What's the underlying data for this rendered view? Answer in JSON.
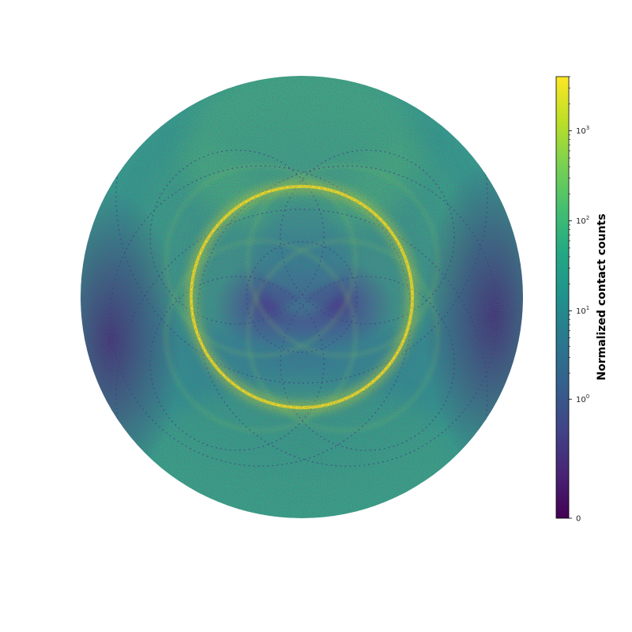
{
  "chart_data": {
    "type": "heatmap",
    "title": "",
    "xlabel": "",
    "ylabel": "",
    "scale": "symlog",
    "colormap": "viridis",
    "shape": "circular (polar)",
    "grid": false,
    "legend": "none",
    "colorbar": {
      "label": "Normalized contact counts",
      "placement": "right",
      "range": [
        0,
        4000
      ],
      "ticks": [
        {
          "value": 0,
          "text": "0"
        },
        {
          "value": 1,
          "base": "10",
          "exp": "0"
        },
        {
          "value": 10,
          "base": "10",
          "exp": "1"
        },
        {
          "value": 100,
          "base": "10",
          "exp": "2"
        },
        {
          "value": 1000,
          "base": "10",
          "exp": "3"
        }
      ]
    }
  }
}
